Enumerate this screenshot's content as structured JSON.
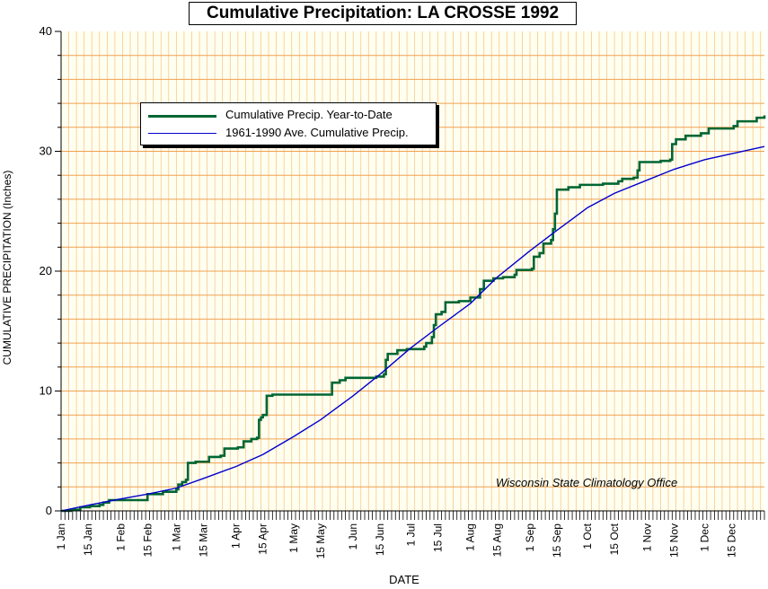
{
  "chart_data": {
    "type": "line",
    "title": "Cumulative Precipitation: LA CROSSE 1992",
    "xlabel": "DATE",
    "ylabel": "CUMULATIVE PRECIPITATION (Inches)",
    "ylim": [
      0,
      40
    ],
    "yticks": [
      0,
      10,
      20,
      30,
      40
    ],
    "xlim": [
      0,
      366
    ],
    "xticks": [
      {
        "label": "1 Jan",
        "day": 0
      },
      {
        "label": "15 Jan",
        "day": 14
      },
      {
        "label": "1 Feb",
        "day": 31
      },
      {
        "label": "15 Feb",
        "day": 45
      },
      {
        "label": "1 Mar",
        "day": 60
      },
      {
        "label": "15 Mar",
        "day": 74
      },
      {
        "label": "1 Apr",
        "day": 91
      },
      {
        "label": "15 Apr",
        "day": 105
      },
      {
        "label": "1 May",
        "day": 121
      },
      {
        "label": "15 May",
        "day": 135
      },
      {
        "label": "1 Jun",
        "day": 152
      },
      {
        "label": "15 Jun",
        "day": 166
      },
      {
        "label": "1 Jul",
        "day": 182
      },
      {
        "label": "15 Jul",
        "day": 196
      },
      {
        "label": "1 Aug",
        "day": 213
      },
      {
        "label": "15 Aug",
        "day": 227
      },
      {
        "label": "1 Sep",
        "day": 244
      },
      {
        "label": "15 Sep",
        "day": 258
      },
      {
        "label": "1 Oct",
        "day": 274
      },
      {
        "label": "15 Oct",
        "day": 288
      },
      {
        "label": "1 Nov",
        "day": 305
      },
      {
        "label": "15 Nov",
        "day": 319
      },
      {
        "label": "1 Dec",
        "day": 335
      },
      {
        "label": "15 Dec",
        "day": 349
      }
    ],
    "grid": true,
    "legend_position": "top-left",
    "series": [
      {
        "name": "Cumulative Precip. Year-to-Date",
        "color": "#006633",
        "step": true,
        "points": [
          [
            0,
            0
          ],
          [
            5,
            0.1
          ],
          [
            10,
            0.3
          ],
          [
            15,
            0.4
          ],
          [
            20,
            0.5
          ],
          [
            22,
            0.7
          ],
          [
            25,
            0.9
          ],
          [
            44,
            0.9
          ],
          [
            45,
            1.4
          ],
          [
            53,
            1.6
          ],
          [
            60,
            1.8
          ],
          [
            61,
            2.2
          ],
          [
            63,
            2.4
          ],
          [
            65,
            2.6
          ],
          [
            66,
            4.0
          ],
          [
            70,
            4.1
          ],
          [
            76,
            4.1
          ],
          [
            77,
            4.5
          ],
          [
            83,
            4.6
          ],
          [
            85,
            5.2
          ],
          [
            92,
            5.3
          ],
          [
            95,
            5.8
          ],
          [
            99,
            6.0
          ],
          [
            102,
            6.1
          ],
          [
            103,
            7.6
          ],
          [
            104,
            7.8
          ],
          [
            105,
            8.0
          ],
          [
            107,
            9.6
          ],
          [
            110,
            9.7
          ],
          [
            140,
            9.7
          ],
          [
            141,
            10.7
          ],
          [
            145,
            10.9
          ],
          [
            148,
            11.1
          ],
          [
            164,
            11.2
          ],
          [
            168,
            11.4
          ],
          [
            169,
            12.6
          ],
          [
            170,
            13.1
          ],
          [
            175,
            13.4
          ],
          [
            180,
            13.5
          ],
          [
            189,
            13.7
          ],
          [
            190,
            14.0
          ],
          [
            193,
            14.5
          ],
          [
            194,
            15.5
          ],
          [
            195,
            16.4
          ],
          [
            198,
            16.6
          ],
          [
            200,
            17.4
          ],
          [
            207,
            17.5
          ],
          [
            213,
            17.8
          ],
          [
            218,
            18.5
          ],
          [
            220,
            19.2
          ],
          [
            225,
            19.4
          ],
          [
            230,
            19.5
          ],
          [
            236,
            19.7
          ],
          [
            237,
            20.1
          ],
          [
            245,
            20.2
          ],
          [
            246,
            21.2
          ],
          [
            249,
            21.5
          ],
          [
            251,
            22.3
          ],
          [
            255,
            22.6
          ],
          [
            256,
            23.5
          ],
          [
            257,
            24.8
          ],
          [
            258,
            26.8
          ],
          [
            264,
            27.0
          ],
          [
            270,
            27.2
          ],
          [
            282,
            27.3
          ],
          [
            290,
            27.5
          ],
          [
            292,
            27.7
          ],
          [
            298,
            27.8
          ],
          [
            300,
            28.4
          ],
          [
            301,
            29.1
          ],
          [
            312,
            29.2
          ],
          [
            317,
            29.3
          ],
          [
            318,
            30.6
          ],
          [
            320,
            31.0
          ],
          [
            325,
            31.3
          ],
          [
            333,
            31.5
          ],
          [
            337,
            31.9
          ],
          [
            350,
            32.1
          ],
          [
            352,
            32.5
          ],
          [
            362,
            32.8
          ],
          [
            366,
            33.0
          ]
        ]
      },
      {
        "name": "1961-1990 Ave. Cumulative Precip.",
        "color": "#0000cc",
        "step": false,
        "points": [
          [
            0,
            0
          ],
          [
            15,
            0.5
          ],
          [
            31,
            1.0
          ],
          [
            45,
            1.4
          ],
          [
            60,
            1.9
          ],
          [
            74,
            2.7
          ],
          [
            91,
            3.7
          ],
          [
            105,
            4.7
          ],
          [
            121,
            6.2
          ],
          [
            135,
            7.6
          ],
          [
            152,
            9.6
          ],
          [
            166,
            11.4
          ],
          [
            182,
            13.6
          ],
          [
            196,
            15.3
          ],
          [
            213,
            17.3
          ],
          [
            227,
            19.5
          ],
          [
            244,
            21.7
          ],
          [
            258,
            23.4
          ],
          [
            274,
            25.3
          ],
          [
            288,
            26.5
          ],
          [
            305,
            27.6
          ],
          [
            319,
            28.5
          ],
          [
            335,
            29.3
          ],
          [
            349,
            29.8
          ],
          [
            366,
            30.4
          ]
        ]
      }
    ],
    "annotation": "Wisconsin State Climatology Office"
  },
  "colors": {
    "plot_bg": "#fffff0",
    "grid_major": "#f0a050",
    "grid_minor": "#f5c890"
  }
}
